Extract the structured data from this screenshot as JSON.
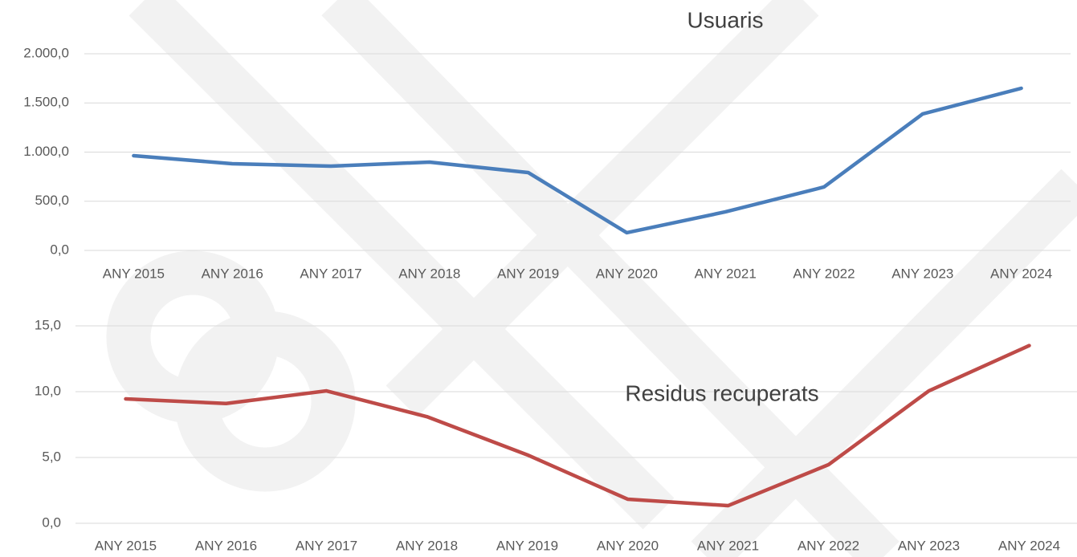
{
  "chart_data": [
    {
      "type": "line",
      "title": "Usuaris",
      "categories": [
        "ANY 2015",
        "ANY 2016",
        "ANY 2017",
        "ANY 2018",
        "ANY 2019",
        "ANY 2020",
        "ANY 2021",
        "ANY 2022",
        "ANY 2023",
        "ANY 2024"
      ],
      "values": [
        963,
        882,
        857,
        898,
        792,
        180,
        392,
        645,
        1388,
        1649
      ],
      "color": "#4a7ebb",
      "ylim": [
        0,
        2000
      ],
      "yticks": [
        {
          "value": 0,
          "label": "0,0"
        },
        {
          "value": 500,
          "label": "500,0"
        },
        {
          "value": 1000,
          "label": "1.000,0"
        },
        {
          "value": 1500,
          "label": "1.500,0"
        },
        {
          "value": 2000,
          "label": "2.000,0"
        }
      ],
      "grid": true
    },
    {
      "type": "line",
      "title": "Residus recuperats",
      "categories": [
        "ANY 2015",
        "ANY 2016",
        "ANY 2017",
        "ANY 2018",
        "ANY 2019",
        "ANY 2020",
        "ANY 2021",
        "ANY 2022",
        "ANY 2023",
        "ANY 2024"
      ],
      "values": [
        9.45,
        9.1,
        10.06,
        8.1,
        5.2,
        1.83,
        1.34,
        4.45,
        10.06,
        13.5
      ],
      "color": "#be4b48",
      "ylim": [
        0,
        15
      ],
      "yticks": [
        {
          "value": 0,
          "label": "0,0"
        },
        {
          "value": 5,
          "label": "5,0"
        },
        {
          "value": 10,
          "label": "10,0"
        },
        {
          "value": 15,
          "label": "15,0"
        }
      ],
      "grid": true
    }
  ]
}
